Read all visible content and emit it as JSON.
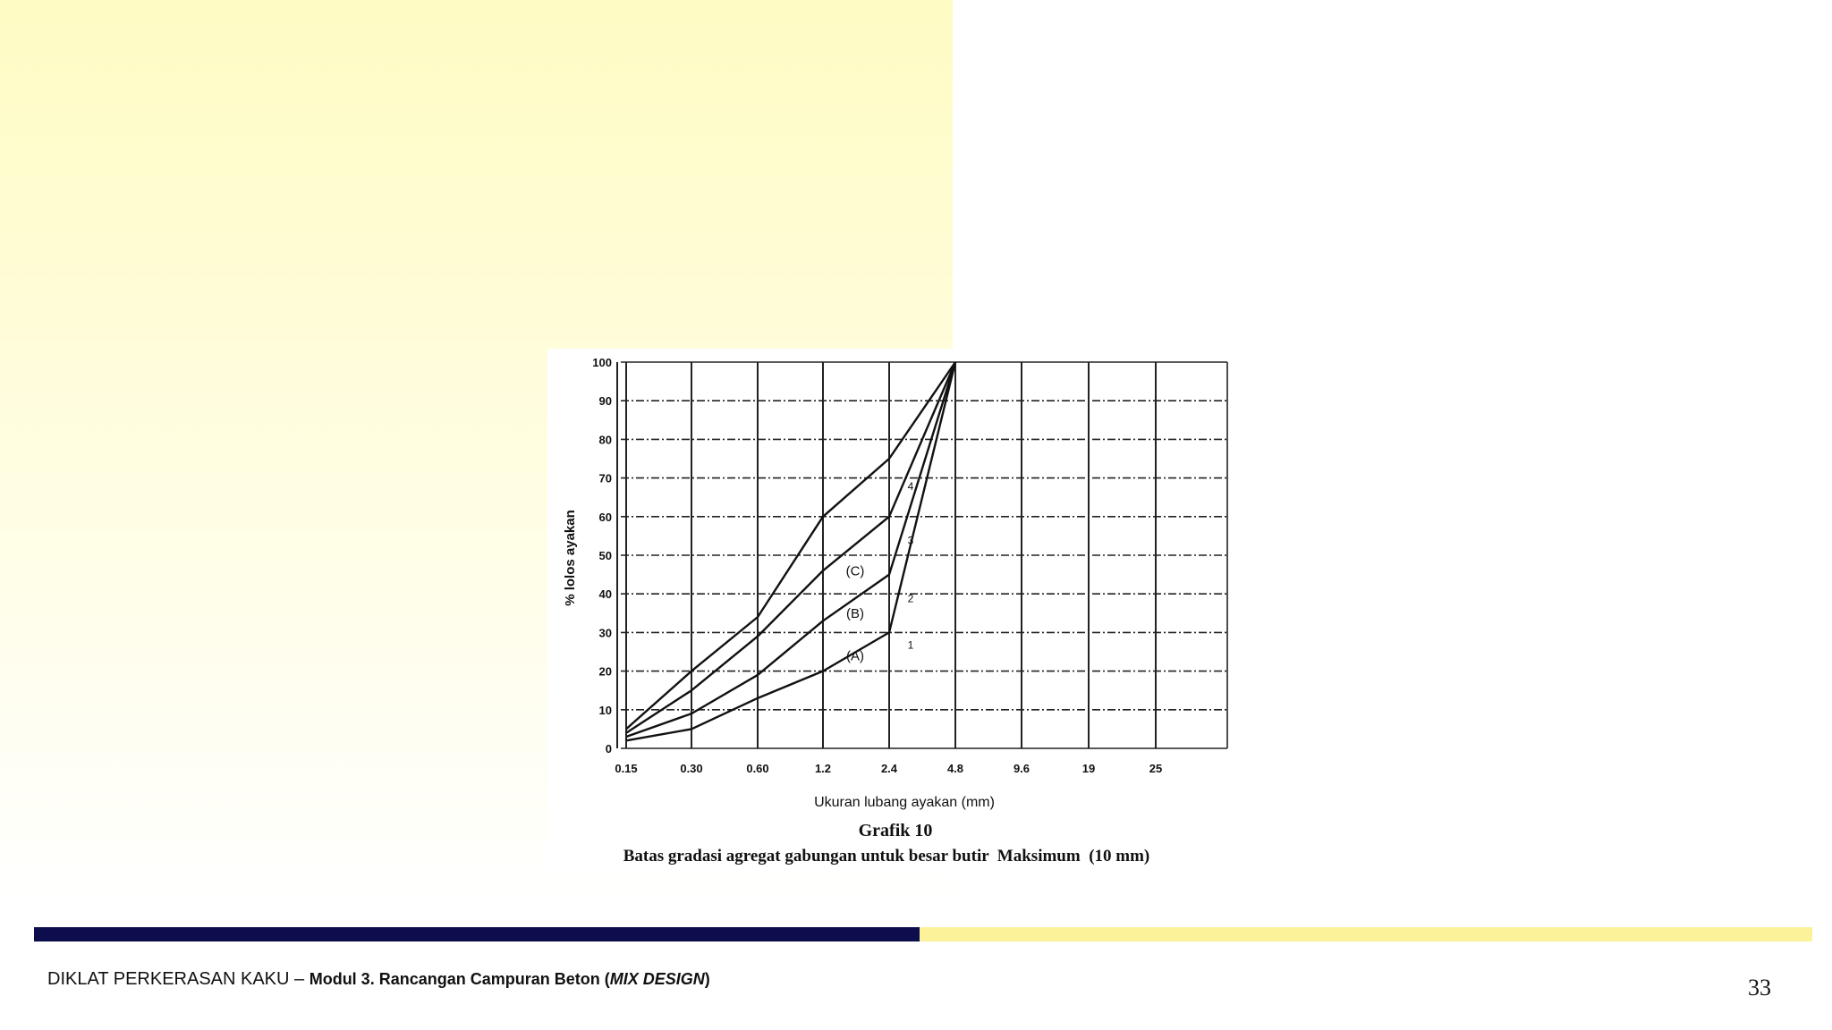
{
  "footer": {
    "prefix": "DIKLAT PERKERASAN KAKU – ",
    "module": "Modul 3. Rancangan Campuran Beton (",
    "module_italic": "MIX DESIGN",
    "module_close": ")",
    "page_number": "33"
  },
  "colors": {
    "dark_bar": "#0d0c4c",
    "light_bar": "#fbf29a",
    "panel": "#fffbc4"
  },
  "chart_data": {
    "type": "line",
    "x_categories": [
      "0.15",
      "0.30",
      "0.60",
      "1.2",
      "2.4",
      "4.8",
      "9.6",
      "19",
      "25"
    ],
    "y_ticks": [
      0,
      10,
      20,
      30,
      40,
      50,
      60,
      70,
      80,
      90,
      100
    ],
    "ylim": [
      0,
      100
    ],
    "grid": true,
    "ylabel": "% lolos ayakan",
    "xlabel": "Ukuran lubang ayakan (mm)",
    "title": "Grafik 10",
    "subtitle": "Batas gradasi agregat gabungan untuk besar butir  Maksimum  (10 mm)",
    "series": [
      {
        "name": "1",
        "values": [
          2,
          5,
          13,
          20,
          30,
          100
        ]
      },
      {
        "name": "2",
        "values": [
          3,
          9,
          19,
          33,
          45,
          100
        ]
      },
      {
        "name": "3",
        "values": [
          4,
          15,
          29,
          46,
          60,
          100
        ]
      },
      {
        "name": "4",
        "values": [
          5,
          20,
          34,
          60,
          75,
          100
        ]
      }
    ],
    "annotations": [
      {
        "text": "(A)",
        "x": "1.2",
        "y": 24
      },
      {
        "text": "(B)",
        "x": "1.2",
        "y": 35
      },
      {
        "text": "(C)",
        "x": "1.2",
        "y": 46
      },
      {
        "text": "1",
        "x": "2.4",
        "y": 27
      },
      {
        "text": "2",
        "x": "2.4",
        "y": 39
      },
      {
        "text": "3",
        "x": "2.4",
        "y": 54
      },
      {
        "text": "4",
        "x": "2.4",
        "y": 68
      }
    ]
  }
}
